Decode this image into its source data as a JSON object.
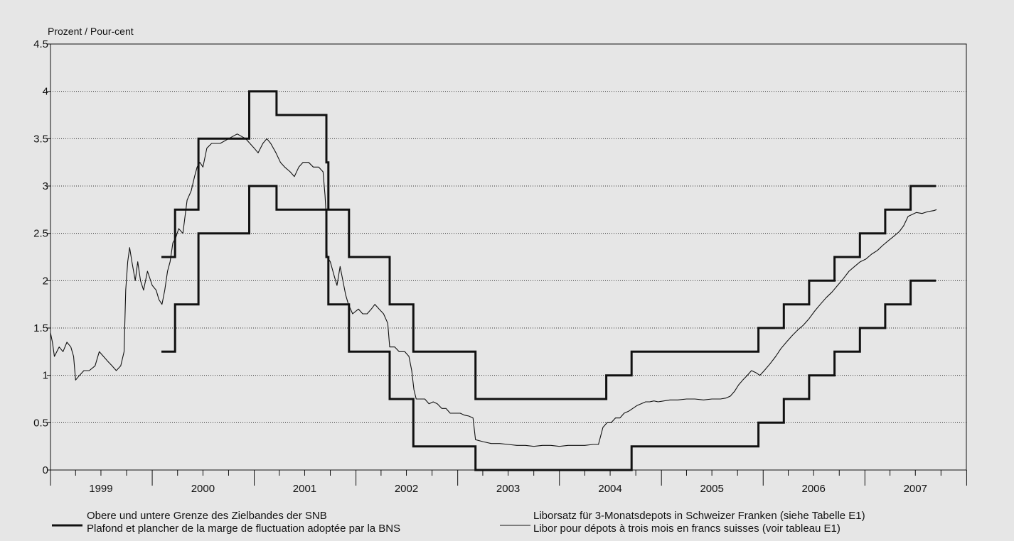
{
  "chart_data": {
    "type": "line",
    "ylabel": "Prozent / Pour-cent",
    "ylim": [
      0,
      4.5
    ],
    "yticks": [
      "0",
      "0.5",
      "1",
      "1.5",
      "2",
      "2.5",
      "3",
      "3.5",
      "4",
      "4.5"
    ],
    "xlim": [
      "1999-01-01",
      "2007-12-31"
    ],
    "xtick_labels": [
      "1999",
      "2000",
      "2001",
      "2002",
      "2003",
      "2004",
      "2005",
      "2006",
      "2007"
    ],
    "grid": "horizontal dotted",
    "legend_position": "bottom",
    "series": [
      {
        "name": "upper",
        "style": "thick-step",
        "color": "#111111",
        "points": [
          [
            "2000-02-03",
            2.25
          ],
          [
            "2000-03-23",
            2.75
          ],
          [
            "2000-06-15",
            3.5
          ],
          [
            "2000-12-14",
            4.0
          ],
          [
            "2001-03-22",
            3.75
          ],
          [
            "2001-09-17",
            3.25
          ],
          [
            "2001-09-24",
            2.75
          ],
          [
            "2001-12-07",
            2.25
          ],
          [
            "2002-05-02",
            1.75
          ],
          [
            "2002-07-26",
            1.25
          ],
          [
            "2003-03-06",
            0.75
          ],
          [
            "2004-06-17",
            1.0
          ],
          [
            "2004-09-16",
            1.25
          ],
          [
            "2005-12-15",
            1.5
          ],
          [
            "2006-03-16",
            1.75
          ],
          [
            "2006-06-15",
            2.0
          ],
          [
            "2006-09-14",
            2.25
          ],
          [
            "2006-12-14",
            2.5
          ],
          [
            "2007-03-15",
            2.75
          ],
          [
            "2007-06-14",
            3.0
          ],
          [
            "2007-09-13",
            3.0
          ]
        ]
      },
      {
        "name": "lower",
        "style": "thick-step",
        "color": "#111111",
        "points": [
          [
            "2000-02-03",
            1.25
          ],
          [
            "2000-03-23",
            1.75
          ],
          [
            "2000-06-15",
            2.5
          ],
          [
            "2000-12-14",
            3.0
          ],
          [
            "2001-03-22",
            2.75
          ],
          [
            "2001-09-17",
            2.25
          ],
          [
            "2001-09-24",
            1.75
          ],
          [
            "2001-12-07",
            1.25
          ],
          [
            "2002-05-02",
            0.75
          ],
          [
            "2002-07-26",
            0.25
          ],
          [
            "2003-03-06",
            0.0
          ],
          [
            "2004-06-17",
            0.0
          ],
          [
            "2004-09-16",
            0.25
          ],
          [
            "2005-12-15",
            0.5
          ],
          [
            "2006-03-16",
            0.75
          ],
          [
            "2006-06-15",
            1.0
          ],
          [
            "2006-09-14",
            1.25
          ],
          [
            "2006-12-14",
            1.5
          ],
          [
            "2007-03-15",
            1.75
          ],
          [
            "2007-06-14",
            2.0
          ],
          [
            "2007-09-13",
            2.0
          ]
        ]
      },
      {
        "name": "libor",
        "style": "thin-line",
        "color": "#111111",
        "points": [
          [
            "1999-01-01",
            1.45
          ],
          [
            "1999-01-08",
            1.35
          ],
          [
            "1999-01-15",
            1.2
          ],
          [
            "1999-02-01",
            1.3
          ],
          [
            "1999-02-15",
            1.25
          ],
          [
            "1999-03-01",
            1.35
          ],
          [
            "1999-03-15",
            1.3
          ],
          [
            "1999-03-25",
            1.2
          ],
          [
            "1999-04-01",
            0.95
          ],
          [
            "1999-04-15",
            1.0
          ],
          [
            "1999-05-01",
            1.05
          ],
          [
            "1999-05-20",
            1.05
          ],
          [
            "1999-06-10",
            1.1
          ],
          [
            "1999-06-25",
            1.25
          ],
          [
            "1999-07-10",
            1.2
          ],
          [
            "1999-07-25",
            1.15
          ],
          [
            "1999-08-10",
            1.1
          ],
          [
            "1999-08-25",
            1.05
          ],
          [
            "1999-09-10",
            1.1
          ],
          [
            "1999-09-22",
            1.25
          ],
          [
            "1999-09-28",
            1.9
          ],
          [
            "1999-10-05",
            2.2
          ],
          [
            "1999-10-12",
            2.35
          ],
          [
            "1999-10-20",
            2.2
          ],
          [
            "1999-11-01",
            2.0
          ],
          [
            "1999-11-10",
            2.2
          ],
          [
            "1999-11-20",
            2.0
          ],
          [
            "1999-12-01",
            1.9
          ],
          [
            "1999-12-15",
            2.1
          ],
          [
            "2000-01-01",
            1.95
          ],
          [
            "2000-01-15",
            1.9
          ],
          [
            "2000-01-25",
            1.8
          ],
          [
            "2000-02-05",
            1.75
          ],
          [
            "2000-02-15",
            1.9
          ],
          [
            "2000-02-25",
            2.1
          ],
          [
            "2000-03-05",
            2.2
          ],
          [
            "2000-03-15",
            2.4
          ],
          [
            "2000-03-25",
            2.45
          ],
          [
            "2000-04-05",
            2.55
          ],
          [
            "2000-04-20",
            2.5
          ],
          [
            "2000-05-05",
            2.85
          ],
          [
            "2000-05-20",
            2.95
          ],
          [
            "2000-06-01",
            3.1
          ],
          [
            "2000-06-10",
            3.2
          ],
          [
            "2000-06-20",
            3.25
          ],
          [
            "2000-07-01",
            3.2
          ],
          [
            "2000-07-15",
            3.4
          ],
          [
            "2000-08-01",
            3.45
          ],
          [
            "2000-09-01",
            3.45
          ],
          [
            "2000-10-01",
            3.5
          ],
          [
            "2000-11-01",
            3.55
          ],
          [
            "2000-12-01",
            3.5
          ],
          [
            "2001-01-01",
            3.4
          ],
          [
            "2001-01-15",
            3.35
          ],
          [
            "2001-02-01",
            3.45
          ],
          [
            "2001-02-15",
            3.5
          ],
          [
            "2001-03-01",
            3.45
          ],
          [
            "2001-03-20",
            3.35
          ],
          [
            "2001-04-05",
            3.25
          ],
          [
            "2001-04-20",
            3.2
          ],
          [
            "2001-05-10",
            3.15
          ],
          [
            "2001-05-25",
            3.1
          ],
          [
            "2001-06-10",
            3.2
          ],
          [
            "2001-06-25",
            3.25
          ],
          [
            "2001-07-15",
            3.25
          ],
          [
            "2001-08-01",
            3.2
          ],
          [
            "2001-08-20",
            3.2
          ],
          [
            "2001-09-05",
            3.15
          ],
          [
            "2001-09-12",
            2.9
          ],
          [
            "2001-09-17",
            2.65
          ],
          [
            "2001-09-20",
            2.25
          ],
          [
            "2001-10-01",
            2.2
          ],
          [
            "2001-10-15",
            2.05
          ],
          [
            "2001-10-25",
            1.95
          ],
          [
            "2001-11-05",
            2.15
          ],
          [
            "2001-11-15",
            2.0
          ],
          [
            "2001-11-25",
            1.85
          ],
          [
            "2001-12-05",
            1.75
          ],
          [
            "2001-12-20",
            1.65
          ],
          [
            "2002-01-10",
            1.7
          ],
          [
            "2002-01-25",
            1.65
          ],
          [
            "2002-02-10",
            1.65
          ],
          [
            "2002-02-25",
            1.7
          ],
          [
            "2002-03-10",
            1.75
          ],
          [
            "2002-03-25",
            1.7
          ],
          [
            "2002-04-10",
            1.65
          ],
          [
            "2002-04-25",
            1.55
          ],
          [
            "2002-05-02",
            1.3
          ],
          [
            "2002-05-20",
            1.3
          ],
          [
            "2002-06-05",
            1.25
          ],
          [
            "2002-06-25",
            1.25
          ],
          [
            "2002-07-10",
            1.2
          ],
          [
            "2002-07-20",
            1.05
          ],
          [
            "2002-07-28",
            0.85
          ],
          [
            "2002-08-05",
            0.75
          ],
          [
            "2002-08-20",
            0.75
          ],
          [
            "2002-09-05",
            0.75
          ],
          [
            "2002-09-20",
            0.7
          ],
          [
            "2002-10-05",
            0.72
          ],
          [
            "2002-10-20",
            0.7
          ],
          [
            "2002-11-05",
            0.65
          ],
          [
            "2002-11-20",
            0.65
          ],
          [
            "2002-12-05",
            0.6
          ],
          [
            "2002-12-25",
            0.6
          ],
          [
            "2003-01-10",
            0.6
          ],
          [
            "2003-01-25",
            0.58
          ],
          [
            "2003-02-10",
            0.57
          ],
          [
            "2003-02-25",
            0.55
          ],
          [
            "2003-03-06",
            0.32
          ],
          [
            "2003-04-01",
            0.3
          ],
          [
            "2003-05-01",
            0.28
          ],
          [
            "2003-06-01",
            0.28
          ],
          [
            "2003-07-01",
            0.27
          ],
          [
            "2003-08-01",
            0.26
          ],
          [
            "2003-09-01",
            0.26
          ],
          [
            "2003-10-01",
            0.25
          ],
          [
            "2003-11-01",
            0.26
          ],
          [
            "2003-12-01",
            0.26
          ],
          [
            "2004-01-01",
            0.25
          ],
          [
            "2004-02-01",
            0.26
          ],
          [
            "2004-03-01",
            0.26
          ],
          [
            "2004-04-01",
            0.26
          ],
          [
            "2004-05-01",
            0.27
          ],
          [
            "2004-05-20",
            0.27
          ],
          [
            "2004-06-05",
            0.45
          ],
          [
            "2004-06-20",
            0.5
          ],
          [
            "2004-07-05",
            0.5
          ],
          [
            "2004-07-20",
            0.55
          ],
          [
            "2004-08-05",
            0.55
          ],
          [
            "2004-08-20",
            0.6
          ],
          [
            "2004-09-05",
            0.62
          ],
          [
            "2004-09-20",
            0.65
          ],
          [
            "2004-10-05",
            0.68
          ],
          [
            "2004-10-20",
            0.7
          ],
          [
            "2004-11-05",
            0.72
          ],
          [
            "2004-11-20",
            0.72
          ],
          [
            "2004-12-05",
            0.73
          ],
          [
            "2004-12-20",
            0.72
          ],
          [
            "2005-01-10",
            0.73
          ],
          [
            "2005-02-01",
            0.74
          ],
          [
            "2005-03-01",
            0.74
          ],
          [
            "2005-04-01",
            0.75
          ],
          [
            "2005-05-01",
            0.75
          ],
          [
            "2005-06-01",
            0.74
          ],
          [
            "2005-07-01",
            0.75
          ],
          [
            "2005-08-01",
            0.75
          ],
          [
            "2005-08-20",
            0.76
          ],
          [
            "2005-09-05",
            0.78
          ],
          [
            "2005-09-20",
            0.83
          ],
          [
            "2005-10-05",
            0.9
          ],
          [
            "2005-10-20",
            0.95
          ],
          [
            "2005-11-05",
            1.0
          ],
          [
            "2005-11-20",
            1.05
          ],
          [
            "2005-12-05",
            1.03
          ],
          [
            "2005-12-20",
            1.0
          ],
          [
            "2006-01-05",
            1.05
          ],
          [
            "2006-01-25",
            1.12
          ],
          [
            "2006-02-15",
            1.2
          ],
          [
            "2006-03-05",
            1.28
          ],
          [
            "2006-03-25",
            1.35
          ],
          [
            "2006-04-15",
            1.42
          ],
          [
            "2006-05-05",
            1.48
          ],
          [
            "2006-05-25",
            1.53
          ],
          [
            "2006-06-15",
            1.6
          ],
          [
            "2006-07-05",
            1.68
          ],
          [
            "2006-07-25",
            1.75
          ],
          [
            "2006-08-15",
            1.82
          ],
          [
            "2006-09-05",
            1.88
          ],
          [
            "2006-09-25",
            1.95
          ],
          [
            "2006-10-15",
            2.02
          ],
          [
            "2006-11-05",
            2.1
          ],
          [
            "2006-11-25",
            2.15
          ],
          [
            "2006-12-15",
            2.2
          ],
          [
            "2007-01-05",
            2.23
          ],
          [
            "2007-01-25",
            2.28
          ],
          [
            "2007-02-15",
            2.32
          ],
          [
            "2007-03-05",
            2.37
          ],
          [
            "2007-03-25",
            2.42
          ],
          [
            "2007-04-15",
            2.47
          ],
          [
            "2007-05-05",
            2.52
          ],
          [
            "2007-05-20",
            2.58
          ],
          [
            "2007-06-05",
            2.68
          ],
          [
            "2007-06-20",
            2.7
          ],
          [
            "2007-07-05",
            2.72
          ],
          [
            "2007-07-25",
            2.71
          ],
          [
            "2007-08-15",
            2.73
          ],
          [
            "2007-09-05",
            2.74
          ],
          [
            "2007-09-15",
            2.75
          ]
        ]
      }
    ],
    "legend": [
      {
        "line_style": "thick",
        "text1": "Obere und untere Grenze des Zielbandes der SNB",
        "text2": "Plafond et plancher de la marge de fluctuation adoptée par la BNS"
      },
      {
        "line_style": "thin",
        "text1": "Liborsatz für 3-Monatsdepots in Schweizer Franken (siehe Tabelle E1)",
        "text2": "Libor pour dépots à trois mois en francs suisses (voir tableau E1)"
      }
    ]
  }
}
